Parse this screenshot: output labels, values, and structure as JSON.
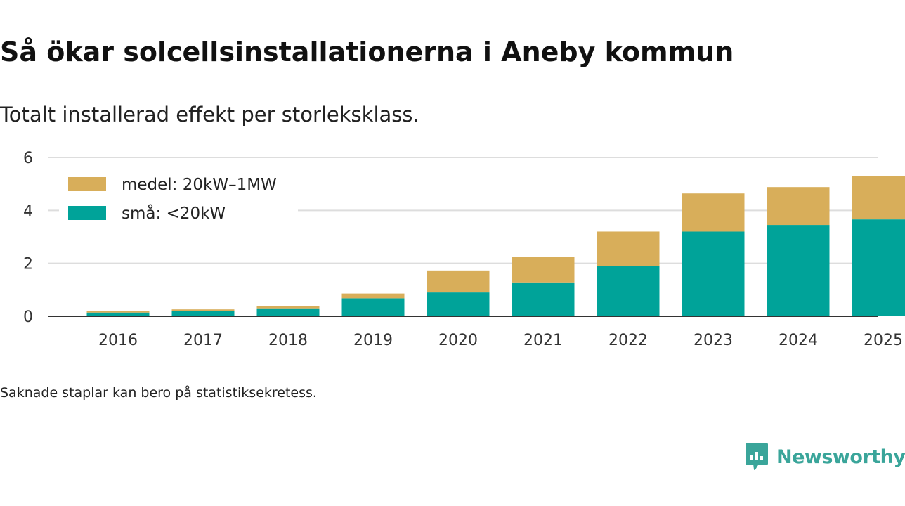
{
  "title": "Så ökar solcellsinstallationerna i Aneby kommun",
  "subtitle": "Totalt installerad effekt per storleksklass.",
  "footnote": "Saknade staplar kan bero på statistiksekretess.",
  "brand": {
    "name": "Newsworthy",
    "icon": "newsworthy-logo-icon",
    "color": "#3aa59a"
  },
  "chart_data": {
    "type": "bar",
    "stacked": true,
    "title": "Så ökar solcellsinstallationerna i Aneby kommun",
    "subtitle": "Totalt installerad effekt per storleksklass.",
    "xlabel": "",
    "ylabel": "",
    "ylim": [
      0,
      6
    ],
    "yticks": [
      0,
      2,
      4,
      6
    ],
    "grid": true,
    "legend_position": "top-left",
    "categories": [
      "2016",
      "2017",
      "2018",
      "2019",
      "2020",
      "2021",
      "2022",
      "2023",
      "2024",
      "2025"
    ],
    "series": [
      {
        "name": "små: <20kW",
        "color": "#00a399",
        "values": [
          0.14,
          0.21,
          0.3,
          0.68,
          0.9,
          1.28,
          1.9,
          3.2,
          3.45,
          3.66
        ]
      },
      {
        "name": "medel: 20kW–1MW",
        "color": "#d8ae5a",
        "values": [
          0.05,
          0.05,
          0.08,
          0.18,
          0.83,
          0.96,
          1.3,
          1.44,
          1.43,
          1.64
        ]
      }
    ]
  }
}
